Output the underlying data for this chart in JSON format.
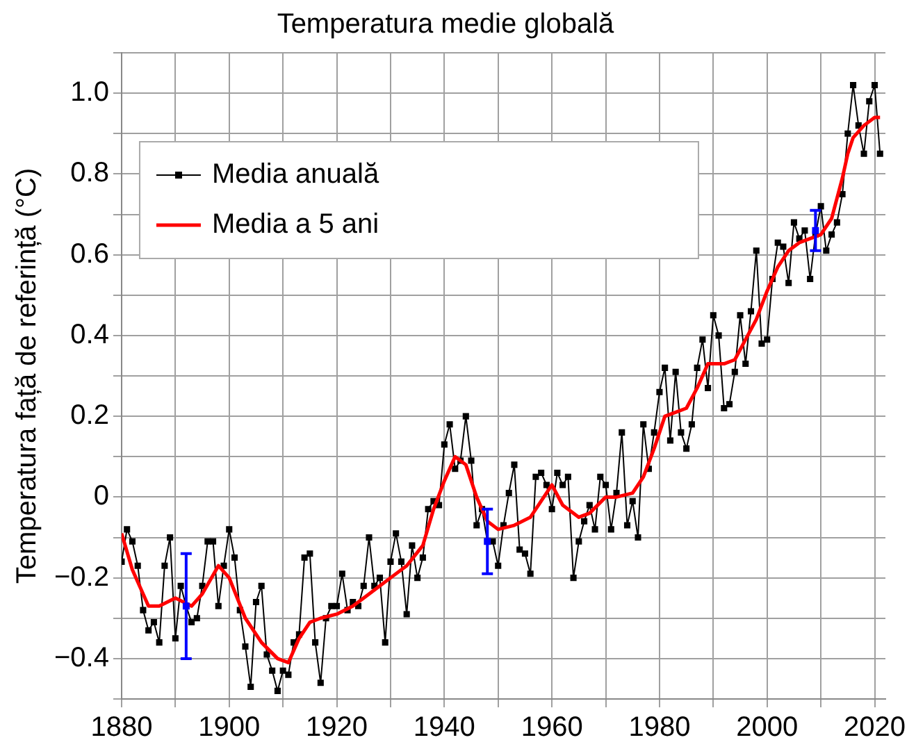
{
  "chart_data": {
    "type": "line",
    "title": "Temperatura medie globală",
    "ylabel": "Temperatura față de referință (°C)",
    "xlim": [
      1880,
      2022
    ],
    "ylim": [
      -0.5,
      1.1
    ],
    "xticks": [
      1880,
      {
        "value": 1890,
        "label": null
      },
      1900,
      {
        "value": 1910,
        "label": null
      },
      1920,
      {
        "value": 1930,
        "label": null
      },
      1940,
      {
        "value": 1950,
        "label": null
      },
      1960,
      {
        "value": 1970,
        "label": null
      },
      1980,
      {
        "value": 1990,
        "label": null
      },
      2000,
      {
        "value": 2010,
        "label": null
      },
      2020
    ],
    "yticks": [
      {
        "value": -0.5,
        "label": null
      },
      {
        "value": -0.4,
        "label": "−0.4"
      },
      {
        "value": -0.3,
        "label": null
      },
      {
        "value": -0.2,
        "label": "−0.2"
      },
      {
        "value": -0.1,
        "label": null
      },
      0,
      {
        "value": 0.1,
        "label": null
      },
      {
        "value": 0.2,
        "label": "0.2"
      },
      {
        "value": 0.3,
        "label": null
      },
      {
        "value": 0.4,
        "label": "0.4"
      },
      {
        "value": 0.5,
        "label": null
      },
      {
        "value": 0.6,
        "label": "0.6"
      },
      {
        "value": 0.7,
        "label": null
      },
      {
        "value": 0.8,
        "label": "0.8"
      },
      {
        "value": 0.9,
        "label": null
      },
      {
        "value": 1.0,
        "label": "1.0"
      },
      {
        "value": 1.1,
        "label": null
      }
    ],
    "grid": true,
    "legend": "top left",
    "line_style": "solid",
    "x": [
      1880,
      1881,
      1882,
      1883,
      1884,
      1885,
      1886,
      1887,
      1888,
      1889,
      1890,
      1891,
      1892,
      1893,
      1894,
      1895,
      1896,
      1897,
      1898,
      1899,
      1900,
      1901,
      1902,
      1903,
      1904,
      1905,
      1906,
      1907,
      1908,
      1909,
      1910,
      1911,
      1912,
      1913,
      1914,
      1915,
      1916,
      1917,
      1918,
      1919,
      1920,
      1921,
      1922,
      1923,
      1924,
      1925,
      1926,
      1927,
      1928,
      1929,
      1930,
      1931,
      1932,
      1933,
      1934,
      1935,
      1936,
      1937,
      1938,
      1939,
      1940,
      1941,
      1942,
      1943,
      1944,
      1945,
      1946,
      1947,
      1948,
      1949,
      1950,
      1951,
      1952,
      1953,
      1954,
      1955,
      1956,
      1957,
      1958,
      1959,
      1960,
      1961,
      1962,
      1963,
      1964,
      1965,
      1966,
      1967,
      1968,
      1969,
      1970,
      1971,
      1972,
      1973,
      1974,
      1975,
      1976,
      1977,
      1978,
      1979,
      1980,
      1981,
      1982,
      1983,
      1984,
      1985,
      1986,
      1987,
      1988,
      1989,
      1990,
      1991,
      1992,
      1993,
      1994,
      1995,
      1996,
      1997,
      1998,
      1999,
      2000,
      2001,
      2002,
      2003,
      2004,
      2005,
      2006,
      2007,
      2008,
      2009,
      2010,
      2011,
      2012,
      2013,
      2014,
      2015,
      2016,
      2017,
      2018,
      2019,
      2020,
      2021
    ],
    "series": [
      {
        "name": "Media anuală",
        "color": "#000000",
        "marker": "square",
        "values": [
          -0.16,
          -0.08,
          -0.11,
          -0.17,
          -0.28,
          -0.33,
          -0.31,
          -0.36,
          -0.17,
          -0.1,
          -0.35,
          -0.22,
          -0.27,
          -0.31,
          -0.3,
          -0.22,
          -0.11,
          -0.11,
          -0.27,
          -0.17,
          -0.08,
          -0.15,
          -0.28,
          -0.37,
          -0.47,
          -0.26,
          -0.22,
          -0.39,
          -0.43,
          -0.48,
          -0.43,
          -0.44,
          -0.36,
          -0.34,
          -0.15,
          -0.14,
          -0.36,
          -0.46,
          -0.3,
          -0.27,
          -0.27,
          -0.19,
          -0.28,
          -0.26,
          -0.27,
          -0.22,
          -0.1,
          -0.22,
          -0.2,
          -0.36,
          -0.16,
          -0.09,
          -0.16,
          -0.29,
          -0.12,
          -0.2,
          -0.15,
          -0.03,
          -0.01,
          -0.02,
          0.13,
          0.18,
          0.07,
          0.09,
          0.2,
          0.09,
          -0.07,
          -0.03,
          -0.11,
          -0.11,
          -0.17,
          -0.07,
          0.01,
          0.08,
          -0.13,
          -0.14,
          -0.19,
          0.05,
          0.06,
          0.03,
          -0.03,
          0.06,
          0.03,
          0.05,
          -0.2,
          -0.11,
          -0.06,
          -0.02,
          -0.08,
          0.05,
          0.03,
          -0.08,
          0.01,
          0.16,
          -0.07,
          -0.01,
          -0.1,
          0.18,
          0.07,
          0.16,
          0.26,
          0.32,
          0.14,
          0.31,
          0.16,
          0.12,
          0.18,
          0.32,
          0.39,
          0.27,
          0.45,
          0.4,
          0.22,
          0.23,
          0.31,
          0.45,
          0.33,
          0.46,
          0.61,
          0.38,
          0.39,
          0.54,
          0.63,
          0.62,
          0.53,
          0.68,
          0.64,
          0.66,
          0.54,
          0.65,
          0.72,
          0.61,
          0.65,
          0.68,
          0.75,
          0.9,
          1.02,
          0.92,
          0.85,
          0.98,
          1.02,
          0.85
        ]
      },
      {
        "name": "Media a 5 ani",
        "color": "#ff0000",
        "marker": "none",
        "x": [
          1880,
          1882,
          1885,
          1887,
          1890,
          1893,
          1895,
          1898,
          1900,
          1903,
          1906,
          1909,
          1911,
          1913,
          1915,
          1917,
          1920,
          1923,
          1925,
          1928,
          1930,
          1933,
          1936,
          1938,
          1940,
          1942,
          1944,
          1946,
          1948,
          1950,
          1953,
          1956,
          1958,
          1960,
          1962,
          1965,
          1967,
          1970,
          1972,
          1975,
          1977,
          1979,
          1981,
          1983,
          1985,
          1987,
          1989,
          1992,
          1994,
          1996,
          1998,
          2000,
          2002,
          2004,
          2006,
          2008,
          2010,
          2012,
          2014,
          2015,
          2016,
          2018,
          2020,
          2021
        ],
        "values": [
          -0.09,
          -0.18,
          -0.27,
          -0.27,
          -0.25,
          -0.27,
          -0.24,
          -0.17,
          -0.2,
          -0.3,
          -0.36,
          -0.4,
          -0.41,
          -0.35,
          -0.31,
          -0.3,
          -0.29,
          -0.27,
          -0.25,
          -0.22,
          -0.2,
          -0.17,
          -0.12,
          -0.03,
          0.04,
          0.1,
          0.08,
          0.0,
          -0.06,
          -0.08,
          -0.07,
          -0.05,
          -0.01,
          0.03,
          -0.02,
          -0.05,
          -0.04,
          0.0,
          0.0,
          0.01,
          0.05,
          0.12,
          0.2,
          0.21,
          0.22,
          0.27,
          0.33,
          0.33,
          0.34,
          0.39,
          0.44,
          0.51,
          0.57,
          0.61,
          0.63,
          0.64,
          0.65,
          0.69,
          0.79,
          0.85,
          0.89,
          0.92,
          0.94,
          0.94
        ]
      },
      {
        "type": "scatter",
        "color": "#0000ff",
        "marker": "square",
        "x": [
          1892,
          1948,
          2009
        ],
        "values": [
          -0.27,
          -0.11,
          0.66
        ],
        "errors": [
          0.13,
          0.08,
          0.05
        ]
      }
    ]
  }
}
